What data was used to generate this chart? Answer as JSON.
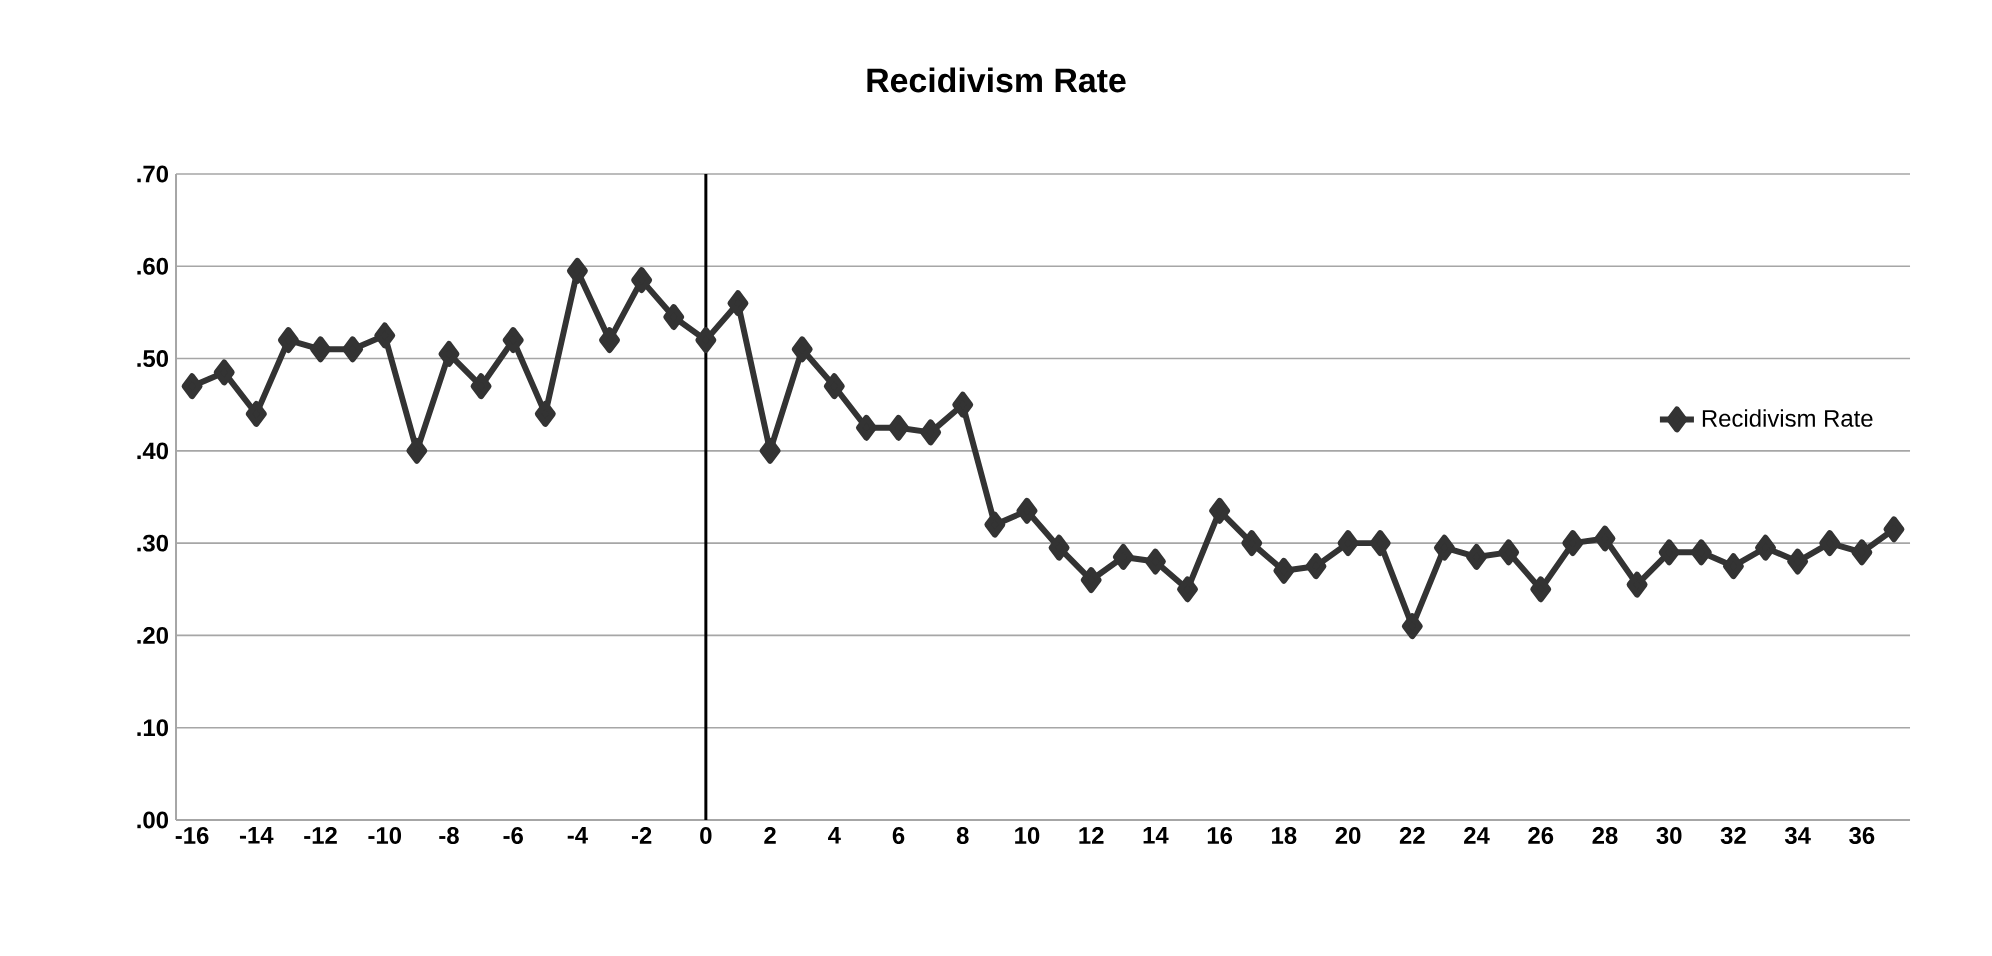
{
  "chart_data": {
    "type": "line",
    "title": "Recidivism Rate",
    "x": [
      -16,
      -15,
      -14,
      -13,
      -12,
      -11,
      -10,
      -9,
      -8,
      -7,
      -6,
      -5,
      -4,
      -3,
      -2,
      -1,
      0,
      1,
      2,
      3,
      4,
      5,
      6,
      7,
      8,
      9,
      10,
      11,
      12,
      13,
      14,
      15,
      16,
      17,
      18,
      19,
      20,
      21,
      22,
      23,
      24,
      25,
      26,
      27,
      28,
      29,
      30,
      31,
      32,
      33,
      34,
      35,
      36,
      37
    ],
    "series": [
      {
        "name": "Recidivism Rate",
        "color": "#333333",
        "values": [
          0.47,
          0.485,
          0.44,
          0.52,
          0.51,
          0.51,
          0.525,
          0.4,
          0.505,
          0.47,
          0.52,
          0.44,
          0.595,
          0.52,
          0.585,
          0.545,
          0.52,
          0.56,
          0.4,
          0.51,
          0.47,
          0.425,
          0.425,
          0.42,
          0.45,
          0.32,
          0.335,
          0.295,
          0.26,
          0.285,
          0.28,
          0.25,
          0.335,
          0.3,
          0.27,
          0.275,
          0.3,
          0.3,
          0.21,
          0.295,
          0.285,
          0.29,
          0.25,
          0.3,
          0.305,
          0.255,
          0.29,
          0.29,
          0.275,
          0.295,
          0.28,
          0.3,
          0.29,
          0.315
        ]
      }
    ],
    "xlim": [
      -16.5,
      37.5
    ],
    "xticks": [
      -16,
      -14,
      -12,
      -10,
      -8,
      -6,
      -4,
      -2,
      0,
      2,
      4,
      6,
      8,
      10,
      12,
      14,
      16,
      18,
      20,
      22,
      24,
      26,
      28,
      30,
      32,
      34,
      36
    ],
    "ylim": [
      0,
      0.7
    ],
    "yticks": [
      {
        "value": 0,
        "label": ".00"
      },
      {
        "value": 0.1,
        "label": ".10"
      },
      {
        "value": 0.2,
        "label": ".20"
      },
      {
        "value": 0.3,
        "label": ".30"
      },
      {
        "value": 0.4,
        "label": ".40"
      },
      {
        "value": 0.5,
        "label": ".50"
      },
      {
        "value": 0.6,
        "label": ".60"
      },
      {
        "value": 0.7,
        "label": ".70"
      }
    ],
    "ref_lines": [
      {
        "axis": "x",
        "value": 0,
        "color": "#000000"
      }
    ],
    "grid": "y",
    "legend": "right",
    "marker": "diamond",
    "line_style": "solid"
  }
}
